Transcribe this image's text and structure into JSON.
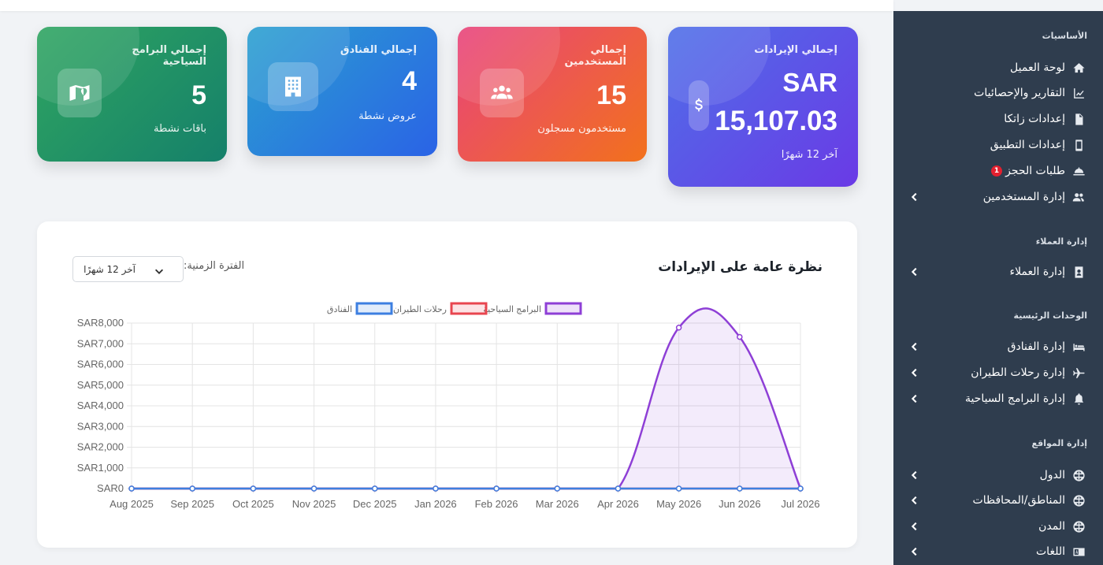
{
  "sidebar": {
    "sections": [
      {
        "title": "الأساسيات",
        "items": [
          {
            "label": "لوحة العميل",
            "icon": "home-icon",
            "chevron": false
          },
          {
            "label": "التقارير والإحصائيات",
            "icon": "chart-line-icon",
            "chevron": false
          },
          {
            "label": "إعدادات زاتكا",
            "icon": "file-invoice-icon",
            "chevron": false
          },
          {
            "label": "إعدادات التطبيق",
            "icon": "mobile-icon",
            "chevron": false
          },
          {
            "label": "طلبات الحجز",
            "icon": "bell-concierge-icon",
            "chevron": false,
            "badge": "1"
          },
          {
            "label": "إدارة المستخدمين",
            "icon": "users-cog-icon",
            "chevron": true
          }
        ]
      },
      {
        "title": "إدارة العملاء",
        "items": [
          {
            "label": "إدارة العملاء",
            "icon": "address-card-icon",
            "chevron": true
          }
        ]
      },
      {
        "title": "الوحدات الرئيسية",
        "items": [
          {
            "label": "إدارة الفنادق",
            "icon": "bed-icon",
            "chevron": true
          },
          {
            "label": "إدارة رحلات الطيران",
            "icon": "plane-icon",
            "chevron": true
          },
          {
            "label": "إدارة البرامج السياحية",
            "icon": "bell-icon",
            "chevron": true
          }
        ]
      },
      {
        "title": "إدارة المواقع",
        "items": [
          {
            "label": "الدول",
            "icon": "globe-icon",
            "chevron": true
          },
          {
            "label": "المناطق/المحافظات",
            "icon": "globe-icon",
            "chevron": true
          },
          {
            "label": "المدن",
            "icon": "globe-icon",
            "chevron": true
          },
          {
            "label": "اللغات",
            "icon": "language-icon",
            "chevron": true
          }
        ]
      }
    ]
  },
  "cards": {
    "revenue": {
      "title": "إجمالي الإيرادات",
      "currency": "SAR",
      "value": "15,107.03",
      "sub": "آخر 12 شهرًا",
      "icon": "dollar-icon"
    },
    "users": {
      "title_line1": "إجمالي",
      "title_line2": "المستخدمين",
      "value": "15",
      "sub": "مستخدمون مسجلون",
      "icon": "users-icon"
    },
    "hotels": {
      "title": "إجمالي الفنادق",
      "value": "4",
      "sub": "عروض نشطة",
      "icon": "hotel-icon"
    },
    "programs": {
      "title_line1": "إجمالي البرامج",
      "title_line2": "السياحية",
      "value": "5",
      "sub": "باقات نشطة",
      "icon": "map-icon"
    }
  },
  "panel": {
    "title": "نظرة عامة على الإيرادات",
    "period_label": "الفترة الزمنية:",
    "period_value": "آخر 12 شهرًا"
  },
  "colors": {
    "sidebar_bg": "#2f3d4e",
    "revenue_card": "#5b45ea",
    "users_card": "#ef4565",
    "hotels_card": "#2b7de0",
    "programs_card": "#1e9a63",
    "series_programs": "#8e3fd6",
    "series_flights": "#e8454f",
    "series_hotels": "#3d7fe0"
  },
  "chart_data": {
    "type": "line",
    "x": [
      "Aug 2025",
      "Sep 2025",
      "Oct 2025",
      "Nov 2025",
      "Dec 2025",
      "Jan 2026",
      "Feb 2026",
      "Mar 2026",
      "Apr 2026",
      "May 2026",
      "Jun 2026",
      "Jul 2026"
    ],
    "y_ticks": [
      "SAR0",
      "SAR1,000",
      "SAR2,000",
      "SAR3,000",
      "SAR4,000",
      "SAR5,000",
      "SAR6,000",
      "SAR7,000",
      "SAR8,000"
    ],
    "ylim": [
      0,
      8000
    ],
    "grid": true,
    "legend_position": "top",
    "series": [
      {
        "name": "البرامج السياحية",
        "color": "#8e3fd6",
        "fill": "rgba(142,63,214,0.10)",
        "values": [
          0,
          0,
          0,
          0,
          0,
          0,
          0,
          0,
          0,
          7780,
          7330,
          0
        ]
      },
      {
        "name": "رحلات الطيران",
        "color": "#e8454f",
        "fill": "rgba(232,69,79,0.10)",
        "values": [
          0,
          0,
          0,
          0,
          0,
          0,
          0,
          0,
          0,
          0,
          0,
          0
        ]
      },
      {
        "name": "الفنادق",
        "color": "#3d7fe0",
        "fill": "rgba(61,127,224,0.10)",
        "values": [
          0,
          0,
          0,
          0,
          0,
          0,
          0,
          0,
          0,
          0,
          0,
          0
        ]
      }
    ]
  }
}
